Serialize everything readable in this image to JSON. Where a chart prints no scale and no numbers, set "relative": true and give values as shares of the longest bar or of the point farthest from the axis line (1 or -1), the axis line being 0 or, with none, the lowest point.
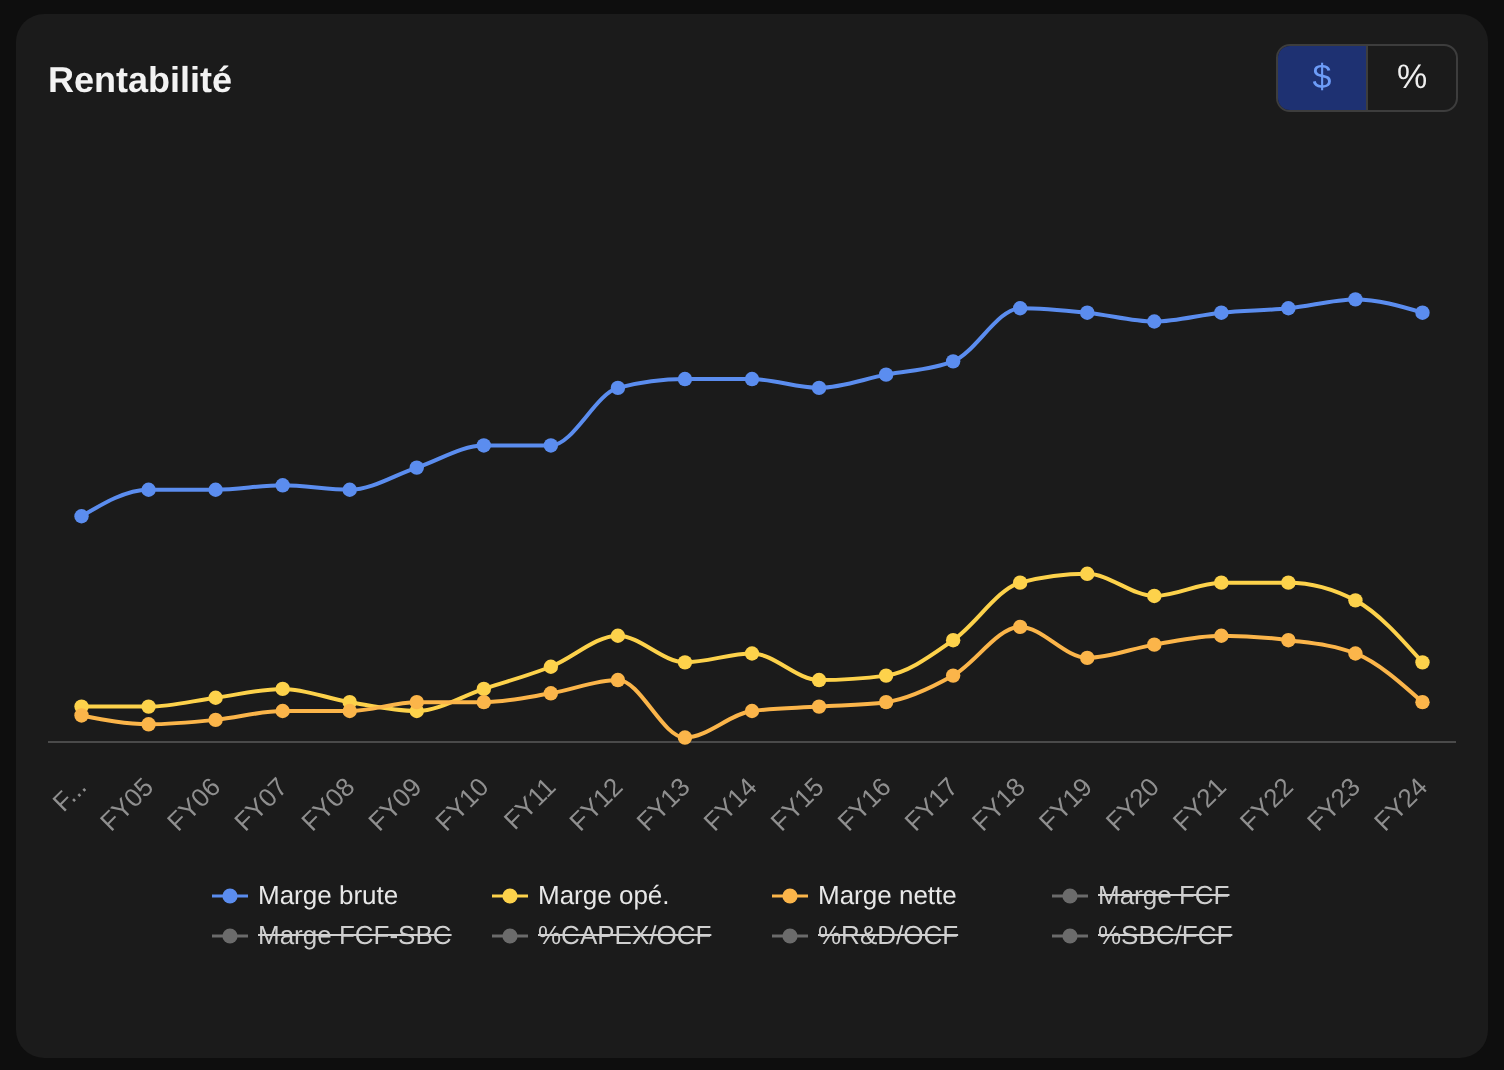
{
  "chart_data": {
    "type": "line",
    "title": "Rentabilité",
    "annotations": [
      "$",
      "%"
    ],
    "relative": true,
    "legend": "bottom",
    "marker": "circle",
    "line_style": "solid",
    "grid": false,
    "categories": [
      "F...",
      "FY05",
      "FY06",
      "FY07",
      "FY08",
      "FY09",
      "FY10",
      "FY11",
      "FY12",
      "FY13",
      "FY14",
      "FY15",
      "FY16",
      "FY17",
      "FY18",
      "FY19",
      "FY20",
      "FY21",
      "FY22",
      "FY23",
      "FY24"
    ],
    "series": [
      {
        "name": "Marge brute",
        "color": "#5b8def",
        "values": [
          0.51,
          0.57,
          0.57,
          0.58,
          0.57,
          0.62,
          0.67,
          0.67,
          0.8,
          0.82,
          0.82,
          0.8,
          0.83,
          0.86,
          0.98,
          0.97,
          0.95,
          0.97,
          0.98,
          1,
          0.97
        ]
      },
      {
        "name": "Marge opé.",
        "color": "#fdd24b",
        "values": [
          0.08,
          0.08,
          0.1,
          0.12,
          0.09,
          0.07,
          0.12,
          0.17,
          0.24,
          0.18,
          0.2,
          0.14,
          0.15,
          0.23,
          0.36,
          0.38,
          0.33,
          0.36,
          0.36,
          0.32,
          0.18
        ]
      },
      {
        "name": "Marge nette",
        "color": "#fbb54a",
        "values": [
          0.06,
          0.04,
          0.05,
          0.07,
          0.07,
          0.09,
          0.09,
          0.11,
          0.14,
          0.01,
          0.07,
          0.08,
          0.09,
          0.15,
          0.26,
          0.19,
          0.22,
          0.24,
          0.23,
          0.2,
          0.09
        ]
      },
      {
        "name": "Marge FCF",
        "color": "#6b6b6b",
        "values": [
          null,
          null,
          null,
          null,
          null,
          null,
          null,
          null,
          null,
          null,
          null,
          null,
          null,
          null,
          null,
          null,
          null,
          null,
          null,
          null,
          null
        ]
      },
      {
        "name": "Marge FCF-SBC",
        "color": "#6b6b6b",
        "values": [
          null,
          null,
          null,
          null,
          null,
          null,
          null,
          null,
          null,
          null,
          null,
          null,
          null,
          null,
          null,
          null,
          null,
          null,
          null,
          null,
          null
        ]
      },
      {
        "name": "%CAPEX/OCF",
        "color": "#6b6b6b",
        "values": [
          null,
          null,
          null,
          null,
          null,
          null,
          null,
          null,
          null,
          null,
          null,
          null,
          null,
          null,
          null,
          null,
          null,
          null,
          null,
          null,
          null
        ]
      },
      {
        "name": "%R&D/OCF",
        "color": "#6b6b6b",
        "values": [
          null,
          null,
          null,
          null,
          null,
          null,
          null,
          null,
          null,
          null,
          null,
          null,
          null,
          null,
          null,
          null,
          null,
          null,
          null,
          null,
          null
        ]
      },
      {
        "name": "%SBC/FCF",
        "color": "#6b6b6b",
        "values": [
          null,
          null,
          null,
          null,
          null,
          null,
          null,
          null,
          null,
          null,
          null,
          null,
          null,
          null,
          null,
          null,
          null,
          null,
          null,
          null,
          null
        ]
      }
    ]
  }
}
